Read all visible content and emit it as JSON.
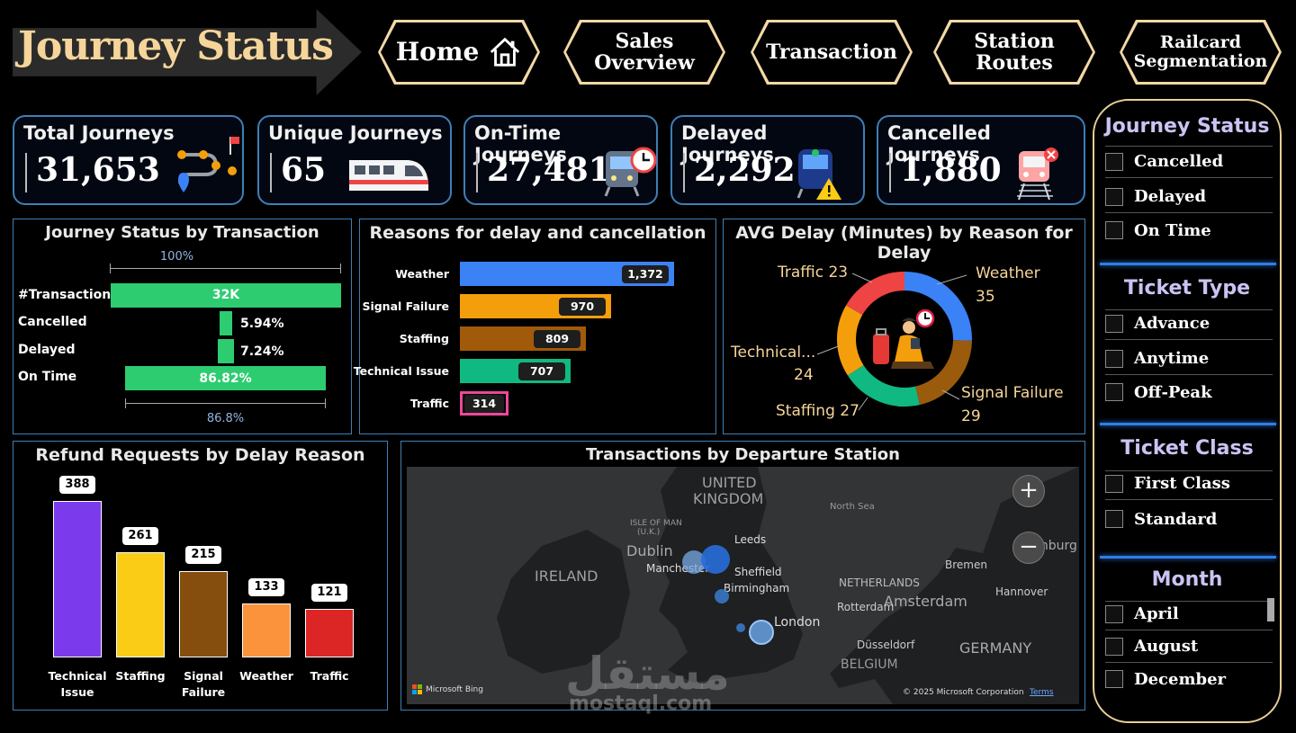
{
  "header": {
    "title": "Journey Status",
    "nav": [
      {
        "label": "Home",
        "icon": "home-icon"
      },
      {
        "label": "Sales Overview"
      },
      {
        "label": "Transaction"
      },
      {
        "label": "Station Routes"
      },
      {
        "label": "Railcard Segmentation"
      }
    ]
  },
  "kpis": [
    {
      "label": "Total Journeys",
      "value": "31,653",
      "icon": "route-icon"
    },
    {
      "label": "Unique Journeys",
      "value": "65",
      "icon": "train-icon"
    },
    {
      "label": "On-Time Journeys",
      "value": "27,481",
      "icon": "train-clock-icon"
    },
    {
      "label": "Delayed Journeys",
      "value": "2,292",
      "icon": "train-warning-icon"
    },
    {
      "label": "Cancelled Journeys",
      "value": "1,880",
      "icon": "train-cancel-icon"
    }
  ],
  "journey_status": {
    "title": "Journey Status by Transaction",
    "top_label": "100%",
    "bottom_label": "86.8%",
    "rows": [
      {
        "label": "#Transaction",
        "value": "32K"
      },
      {
        "label": "Cancelled",
        "value": "5.94%"
      },
      {
        "label": "Delayed",
        "value": "7.24%"
      },
      {
        "label": "On Time",
        "value": "86.82%"
      }
    ]
  },
  "reasons": {
    "title": "Reasons for delay and cancellation",
    "items": [
      {
        "label": "Weather",
        "value": 1372,
        "display": "1,372",
        "color": "#3b82f6"
      },
      {
        "label": "Signal Failure",
        "value": 970,
        "display": "970",
        "color": "#f59e0b"
      },
      {
        "label": "Staffing",
        "value": 809,
        "display": "809",
        "color": "#a05a0a"
      },
      {
        "label": "Technical Issue",
        "value": 707,
        "display": "707",
        "color": "#10b981"
      },
      {
        "label": "Traffic",
        "value": 314,
        "display": "314",
        "color": "#ec4899"
      }
    ]
  },
  "avg_delay": {
    "title": "AVG Delay (Minutes) by Reason for Delay",
    "labels": {
      "weather": "Weather",
      "weather_v": "35",
      "signal": "Signal Failure",
      "signal_v": "29",
      "staffing": "Staffing 27",
      "technical": "Technical...",
      "technical_v": "24",
      "traffic": "Traffic 23"
    }
  },
  "refunds": {
    "title": "Refund Requests by Delay Reason",
    "items": [
      {
        "label1": "Technical",
        "label2": "Issue",
        "value": 388,
        "color": "#7c3aed"
      },
      {
        "label1": "Staffing",
        "label2": "",
        "value": 261,
        "color": "#facc15"
      },
      {
        "label1": "Signal",
        "label2": "Failure",
        "value": 215,
        "color": "#854d0e"
      },
      {
        "label1": "Weather",
        "label2": "",
        "value": 133,
        "color": "#fb923c"
      },
      {
        "label1": "Traffic",
        "label2": "",
        "value": 121,
        "color": "#dc2626"
      }
    ]
  },
  "map": {
    "title": "Transactions by Departure Station",
    "labels": {
      "uk1": "UNITED",
      "uk2": "KINGDOM",
      "ireland": "IRELAND",
      "iom1": "ISLE OF MAN",
      "iom2": "(U.K.)",
      "dublin": "Dublin",
      "leeds": "Leeds",
      "manchester": "Manchester",
      "sheffield": "Sheffield",
      "birmingham": "Birmingham",
      "london": "London",
      "northsea": "North Sea",
      "netherlands": "NETHERLANDS",
      "amsterdam": "Amsterdam",
      "rotterdam": "Rotterdam",
      "hamburg": "Hamburg",
      "bremen": "Bremen",
      "hannover": "Hannover",
      "dusseldorf": "Düsseldorf",
      "germany": "GERMANY",
      "belgium": "BELGIUM",
      "bing": "Microsoft Bing",
      "copyright": "© 2025 Microsoft Corporation",
      "terms": "Terms",
      "zoom_in": "+",
      "zoom_out": "−"
    }
  },
  "slicers": {
    "journey_status": {
      "title": "Journey Status",
      "items": [
        "Cancelled",
        "Delayed",
        "On Time"
      ]
    },
    "ticket_type": {
      "title": "Ticket Type",
      "items": [
        "Advance",
        "Anytime",
        "Off-Peak"
      ]
    },
    "ticket_class": {
      "title": "Ticket Class",
      "items": [
        "First Class",
        "Standard"
      ]
    },
    "month": {
      "title": "Month",
      "items": [
        "April",
        "August",
        "December"
      ]
    }
  },
  "watermark": {
    "arabic": "مستقل",
    "latin": "mostaql.com"
  }
}
